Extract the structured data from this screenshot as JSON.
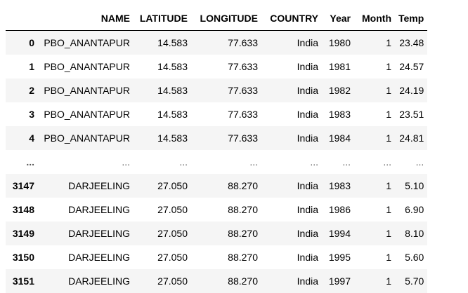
{
  "table": {
    "headers": {
      "index": "",
      "name": "NAME",
      "latitude": "LATITUDE",
      "longitude": "LONGITUDE",
      "country": "COUNTRY",
      "year": "Year",
      "month": "Month",
      "temp": "Temp"
    },
    "rows": [
      {
        "index": "0",
        "name": "PBO_ANANTAPUR",
        "latitude": "14.583",
        "longitude": "77.633",
        "country": "India",
        "year": "1980",
        "month": "1",
        "temp": "23.48"
      },
      {
        "index": "1",
        "name": "PBO_ANANTAPUR",
        "latitude": "14.583",
        "longitude": "77.633",
        "country": "India",
        "year": "1981",
        "month": "1",
        "temp": "24.57"
      },
      {
        "index": "2",
        "name": "PBO_ANANTAPUR",
        "latitude": "14.583",
        "longitude": "77.633",
        "country": "India",
        "year": "1982",
        "month": "1",
        "temp": "24.19"
      },
      {
        "index": "3",
        "name": "PBO_ANANTAPUR",
        "latitude": "14.583",
        "longitude": "77.633",
        "country": "India",
        "year": "1983",
        "month": "1",
        "temp": "23.51"
      },
      {
        "index": "4",
        "name": "PBO_ANANTAPUR",
        "latitude": "14.583",
        "longitude": "77.633",
        "country": "India",
        "year": "1984",
        "month": "1",
        "temp": "24.81"
      },
      {
        "index": "...",
        "name": "...",
        "latitude": "...",
        "longitude": "...",
        "country": "...",
        "year": "...",
        "month": "...",
        "temp": "..."
      },
      {
        "index": "3147",
        "name": "DARJEELING",
        "latitude": "27.050",
        "longitude": "88.270",
        "country": "India",
        "year": "1983",
        "month": "1",
        "temp": "5.10"
      },
      {
        "index": "3148",
        "name": "DARJEELING",
        "latitude": "27.050",
        "longitude": "88.270",
        "country": "India",
        "year": "1986",
        "month": "1",
        "temp": "6.90"
      },
      {
        "index": "3149",
        "name": "DARJEELING",
        "latitude": "27.050",
        "longitude": "88.270",
        "country": "India",
        "year": "1994",
        "month": "1",
        "temp": "8.10"
      },
      {
        "index": "3150",
        "name": "DARJEELING",
        "latitude": "27.050",
        "longitude": "88.270",
        "country": "India",
        "year": "1995",
        "month": "1",
        "temp": "5.60"
      },
      {
        "index": "3151",
        "name": "DARJEELING",
        "latitude": "27.050",
        "longitude": "88.270",
        "country": "India",
        "year": "1997",
        "month": "1",
        "temp": "5.70"
      }
    ]
  },
  "colors": {
    "stripe": "#f5f5f5",
    "header_border": "#000000",
    "text": "#000000"
  }
}
